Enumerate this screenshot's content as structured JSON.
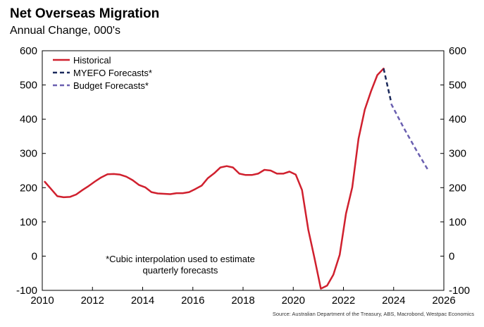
{
  "header": {
    "title": "Net Overseas Migration",
    "subtitle": "Annual Change, 000's"
  },
  "source": "Source: Australian Department of the Treasury, ABS, Macrobond, Westpac Economics",
  "colors": {
    "historical": "#d0202e",
    "myefo": "#1c2a5c",
    "budget": "#6a5fb0"
  },
  "chart_data": {
    "type": "line",
    "title": "Net Overseas Migration",
    "subtitle": "Annual Change, 000's",
    "xlabel": "",
    "ylabel": "",
    "xlim": [
      2010,
      2026
    ],
    "ylim": [
      -100,
      600
    ],
    "x_ticks": [
      "2010",
      "2012",
      "2014",
      "2016",
      "2018",
      "2020",
      "2022",
      "2024",
      "2026"
    ],
    "y_ticks": [
      "-100",
      "0",
      "100",
      "200",
      "300",
      "400",
      "500",
      "600"
    ],
    "legend": {
      "position": "top-left",
      "entries": [
        "Historical",
        "MYEFO Forecasts*",
        "Budget Forecasts*"
      ]
    },
    "annotation": [
      "*Cubic interpolation used to estimate",
      "quarterly forecasts"
    ],
    "series": [
      {
        "name": "Historical",
        "style": "solid",
        "x": [
          2010.1,
          2010.35,
          2010.6,
          2010.85,
          2011.1,
          2011.35,
          2011.6,
          2011.85,
          2012.1,
          2012.35,
          2012.6,
          2012.85,
          2013.1,
          2013.35,
          2013.6,
          2013.85,
          2014.1,
          2014.35,
          2014.6,
          2014.85,
          2015.1,
          2015.35,
          2015.6,
          2015.85,
          2016.1,
          2016.35,
          2016.6,
          2016.85,
          2017.1,
          2017.35,
          2017.6,
          2017.85,
          2018.1,
          2018.35,
          2018.6,
          2018.85,
          2019.1,
          2019.35,
          2019.6,
          2019.85,
          2020.1,
          2020.35,
          2020.6,
          2020.85,
          2021.1,
          2021.35,
          2021.6,
          2021.85,
          2022.1,
          2022.35,
          2022.6,
          2022.85,
          2023.1,
          2023.35,
          2023.6
        ],
        "values": [
          217,
          196,
          175,
          172,
          173,
          180,
          193,
          205,
          218,
          230,
          239,
          240,
          238,
          232,
          222,
          208,
          201,
          187,
          183,
          182,
          181,
          184,
          184,
          187,
          196,
          206,
          228,
          242,
          259,
          263,
          259,
          241,
          237,
          237,
          241,
          252,
          250,
          241,
          241,
          247,
          238,
          193,
          77,
          -7,
          -95,
          -86,
          -54,
          4,
          124,
          201,
          343,
          428,
          482,
          529,
          548
        ]
      },
      {
        "name": "MYEFO Forecasts*",
        "style": "dashed",
        "x": [
          2023.6,
          2023.9
        ],
        "values": [
          548,
          450
        ]
      },
      {
        "name": "Budget Forecasts*",
        "style": "dashed",
        "x": [
          2023.9,
          2024.4,
          2024.9,
          2025.4
        ],
        "values": [
          445,
          375,
          310,
          248
        ]
      }
    ]
  }
}
